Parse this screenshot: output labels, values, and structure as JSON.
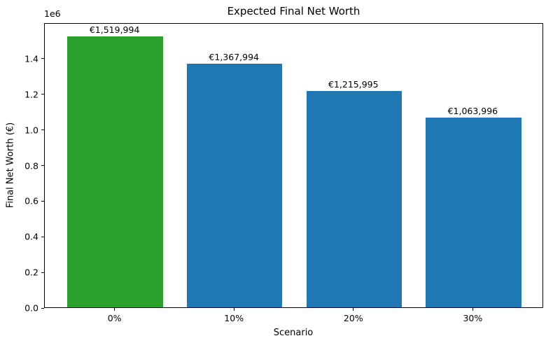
{
  "chart_data": {
    "type": "bar",
    "title": "Expected Final Net Worth",
    "xlabel": "Scenario",
    "ylabel": "Final Net Worth (€)",
    "y_offset_label": "1e6",
    "categories": [
      "0%",
      "10%",
      "20%",
      "30%"
    ],
    "values": [
      1519994,
      1367994,
      1215995,
      1063996
    ],
    "bar_labels": [
      "€1,519,994",
      "€1,367,994",
      "€1,215,995",
      "€1,063,996"
    ],
    "bar_colors": [
      "#2ca02c",
      "#1f77b4",
      "#1f77b4",
      "#1f77b4"
    ],
    "ylim": [
      0,
      1600000
    ],
    "yticks": [
      0,
      200000,
      400000,
      600000,
      800000,
      1000000,
      1200000,
      1400000
    ],
    "ytick_labels": [
      "0.0",
      "0.2",
      "0.4",
      "0.6",
      "0.8",
      "1.0",
      "1.2",
      "1.4"
    ],
    "grid": false,
    "legend_position": "none",
    "background": "#ffffff"
  }
}
